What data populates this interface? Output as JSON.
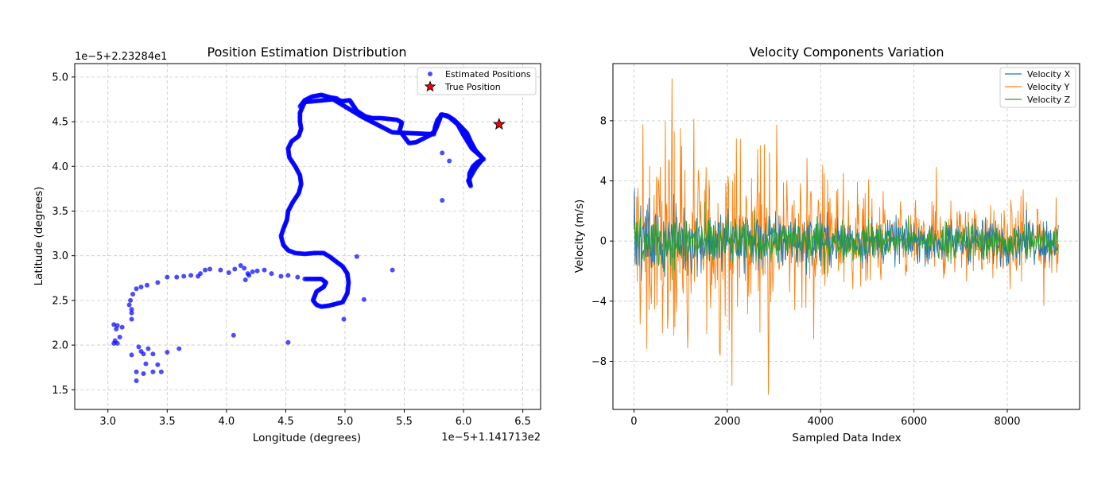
{
  "chart_data": [
    {
      "type": "scatter",
      "title": "Position Estimation Distribution",
      "xlabel": "Longitude (degrees)",
      "ylabel": "Latitude (degrees)",
      "x_offset_text": "1e−5+1.141713e2",
      "y_offset_text": "1e−5+2.23284e1",
      "xlim": [
        2.72,
        6.65
      ],
      "ylim": [
        1.28,
        5.15
      ],
      "x_ticks": [
        "3.0",
        "3.5",
        "4.0",
        "4.5",
        "5.0",
        "5.5",
        "6.0",
        "6.5"
      ],
      "y_ticks": [
        "1.5",
        "2.0",
        "2.5",
        "3.0",
        "3.5",
        "4.0",
        "4.5",
        "5.0"
      ],
      "grid": true,
      "legend_position": "top-right",
      "series": [
        {
          "name": "Estimated Positions",
          "color": "#0000ff",
          "marker": "circle",
          "path": [
            [
              4.62,
              4.67
            ],
            [
              4.66,
              4.74
            ],
            [
              4.72,
              4.78
            ],
            [
              4.8,
              4.8
            ],
            [
              4.88,
              4.77
            ],
            [
              4.93,
              4.76
            ],
            [
              4.95,
              4.74
            ],
            [
              4.98,
              4.73
            ],
            [
              5.04,
              4.74
            ],
            [
              5.07,
              4.68
            ],
            [
              5.1,
              4.62
            ],
            [
              5.17,
              4.56
            ],
            [
              5.23,
              4.54
            ],
            [
              5.3,
              4.54
            ],
            [
              5.38,
              4.53
            ],
            [
              5.44,
              4.52
            ],
            [
              5.48,
              4.49
            ],
            [
              5.47,
              4.44
            ],
            [
              5.46,
              4.4
            ],
            [
              5.5,
              4.33
            ],
            [
              5.54,
              4.26
            ],
            [
              5.6,
              4.27
            ],
            [
              5.66,
              4.31
            ],
            [
              5.72,
              4.35
            ],
            [
              5.76,
              4.4
            ],
            [
              5.78,
              4.46
            ],
            [
              5.8,
              4.53
            ],
            [
              5.81,
              4.58
            ],
            [
              5.86,
              4.57
            ],
            [
              5.92,
              4.52
            ],
            [
              5.98,
              4.44
            ],
            [
              6.03,
              4.37
            ],
            [
              6.06,
              4.28
            ],
            [
              6.1,
              4.18
            ],
            [
              6.14,
              4.12
            ],
            [
              6.17,
              4.08
            ],
            [
              6.12,
              4.05
            ],
            [
              6.08,
              4.0
            ],
            [
              6.05,
              3.92
            ],
            [
              6.05,
              3.84
            ],
            [
              6.06,
              3.78
            ],
            [
              6.04,
              3.84
            ],
            [
              6.1,
              3.98
            ],
            [
              6.16,
              4.08
            ],
            [
              6.14,
              4.12
            ],
            [
              6.07,
              4.2
            ],
            [
              6.0,
              4.35
            ],
            [
              5.95,
              4.47
            ],
            [
              5.88,
              4.55
            ],
            [
              5.82,
              4.58
            ],
            [
              5.78,
              4.52
            ],
            [
              5.76,
              4.44
            ],
            [
              5.75,
              4.36
            ],
            [
              5.4,
              4.38
            ],
            [
              5.15,
              4.55
            ],
            [
              4.9,
              4.75
            ],
            [
              4.66,
              4.72
            ],
            [
              4.62,
              4.6
            ],
            [
              4.62,
              4.5
            ],
            [
              4.63,
              4.42
            ],
            [
              4.61,
              4.34
            ],
            [
              4.55,
              4.28
            ],
            [
              4.52,
              4.2
            ],
            [
              4.53,
              4.1
            ],
            [
              4.58,
              4.0
            ],
            [
              4.62,
              3.9
            ],
            [
              4.63,
              3.8
            ],
            [
              4.61,
              3.7
            ],
            [
              4.56,
              3.6
            ],
            [
              4.52,
              3.5
            ],
            [
              4.51,
              3.4
            ],
            [
              4.48,
              3.3
            ],
            [
              4.46,
              3.22
            ],
            [
              4.48,
              3.12
            ],
            [
              4.52,
              3.06
            ],
            [
              4.58,
              3.03
            ],
            [
              4.66,
              3.02
            ],
            [
              4.74,
              3.03
            ],
            [
              4.82,
              3.03
            ],
            [
              4.87,
              2.99
            ],
            [
              4.93,
              2.93
            ],
            [
              4.98,
              2.88
            ],
            [
              5.02,
              2.8
            ],
            [
              5.03,
              2.7
            ],
            [
              5.02,
              2.58
            ],
            [
              4.98,
              2.48
            ],
            [
              4.92,
              2.46
            ],
            [
              4.86,
              2.44
            ],
            [
              4.8,
              2.43
            ],
            [
              4.76,
              2.45
            ],
            [
              4.73,
              2.5
            ],
            [
              4.76,
              2.6
            ],
            [
              4.82,
              2.65
            ],
            [
              4.84,
              2.7
            ],
            [
              4.8,
              2.74
            ],
            [
              4.74,
              2.74
            ],
            [
              4.66,
              2.74
            ]
          ],
          "points": [
            [
              4.6,
              2.76
            ],
            [
              4.52,
              2.78
            ],
            [
              4.46,
              2.77
            ],
            [
              4.38,
              2.8
            ],
            [
              4.32,
              2.84
            ],
            [
              4.26,
              2.83
            ],
            [
              4.22,
              2.82
            ],
            [
              4.19,
              2.78
            ],
            [
              4.16,
              2.73
            ],
            [
              4.18,
              2.8
            ],
            [
              4.15,
              2.86
            ],
            [
              4.12,
              2.89
            ],
            [
              4.07,
              2.85
            ],
            [
              4.02,
              2.81
            ],
            [
              3.95,
              2.84
            ],
            [
              3.86,
              2.85
            ],
            [
              3.82,
              2.84
            ],
            [
              3.78,
              2.8
            ],
            [
              3.76,
              2.77
            ],
            [
              3.7,
              2.78
            ],
            [
              3.64,
              2.77
            ],
            [
              3.58,
              2.76
            ],
            [
              3.5,
              2.76
            ],
            [
              3.42,
              2.7
            ],
            [
              3.33,
              2.67
            ],
            [
              3.28,
              2.65
            ],
            [
              3.24,
              2.63
            ],
            [
              3.21,
              2.57
            ],
            [
              3.19,
              2.5
            ],
            [
              3.18,
              2.45
            ],
            [
              3.2,
              2.4
            ],
            [
              3.2,
              2.36
            ],
            [
              3.2,
              2.29
            ],
            [
              3.12,
              2.2
            ],
            [
              3.08,
              2.22
            ],
            [
              3.05,
              2.23
            ],
            [
              3.07,
              2.18
            ],
            [
              3.1,
              2.09
            ],
            [
              3.06,
              2.05
            ],
            [
              3.08,
              2.02
            ],
            [
              3.05,
              2.02
            ],
            [
              3.2,
              1.89
            ],
            [
              3.26,
              1.98
            ],
            [
              3.28,
              1.93
            ],
            [
              3.3,
              1.9
            ],
            [
              3.34,
              1.96
            ],
            [
              3.32,
              1.79
            ],
            [
              3.38,
              1.9
            ],
            [
              3.42,
              1.78
            ],
            [
              3.45,
              1.7
            ],
            [
              3.38,
              1.7
            ],
            [
              3.3,
              1.68
            ],
            [
              3.24,
              1.7
            ],
            [
              3.24,
              1.6
            ],
            [
              3.5,
              1.92
            ],
            [
              3.6,
              1.96
            ],
            [
              4.06,
              2.11
            ],
            [
              4.52,
              2.03
            ],
            [
              4.99,
              2.29
            ],
            [
              5.16,
              2.51
            ],
            [
              5.1,
              2.99
            ],
            [
              5.4,
              2.84
            ],
            [
              5.82,
              3.62
            ],
            [
              5.82,
              4.15
            ],
            [
              5.88,
              4.06
            ]
          ]
        },
        {
          "name": "True Position",
          "color": "#ff0000",
          "marker": "star",
          "points": [
            [
              6.3,
              4.47
            ]
          ]
        }
      ]
    },
    {
      "type": "line",
      "title": "Velocity Components Variation",
      "xlabel": "Sampled Data Index",
      "ylabel": "Velocity (m/s)",
      "xlim": [
        -450,
        9550
      ],
      "ylim": [
        -11.2,
        11.8
      ],
      "x_ticks": [
        0,
        2000,
        4000,
        6000,
        8000
      ],
      "y_ticks": [
        -8,
        -4,
        0,
        4,
        8
      ],
      "y_tick_labels": [
        "−8",
        "−4",
        "0",
        "4",
        "8"
      ],
      "grid": true,
      "legend_position": "top-right",
      "n_samples": 9100,
      "series": [
        {
          "name": "Velocity X",
          "color": "#1f77b4",
          "amplitude_early": 2.0,
          "amplitude_late": 1.2
        },
        {
          "name": "Velocity Y",
          "color": "#ff7f0e",
          "amplitude_early": 5.0,
          "amplitude_late": 1.8
        },
        {
          "name": "Velocity Z",
          "color": "#2ca02c",
          "amplitude_early": 1.6,
          "amplitude_late": 1.0
        }
      ],
      "peaks": [
        {
          "x": 820,
          "y": 10.8
        },
        {
          "x": 2880,
          "y": -10.2
        },
        {
          "x": 2100,
          "y": -9.6
        },
        {
          "x": 1000,
          "y": 7.5
        },
        {
          "x": 1850,
          "y": -7.6
        },
        {
          "x": 3060,
          "y": 7.7
        },
        {
          "x": 3850,
          "y": -6.5
        },
        {
          "x": 6480,
          "y": 4.9
        },
        {
          "x": 8780,
          "y": -4.3
        },
        {
          "x": 2650,
          "y": 6.1
        },
        {
          "x": 1150,
          "y": -7.1
        },
        {
          "x": 2200,
          "y": 6.8
        }
      ]
    }
  ]
}
